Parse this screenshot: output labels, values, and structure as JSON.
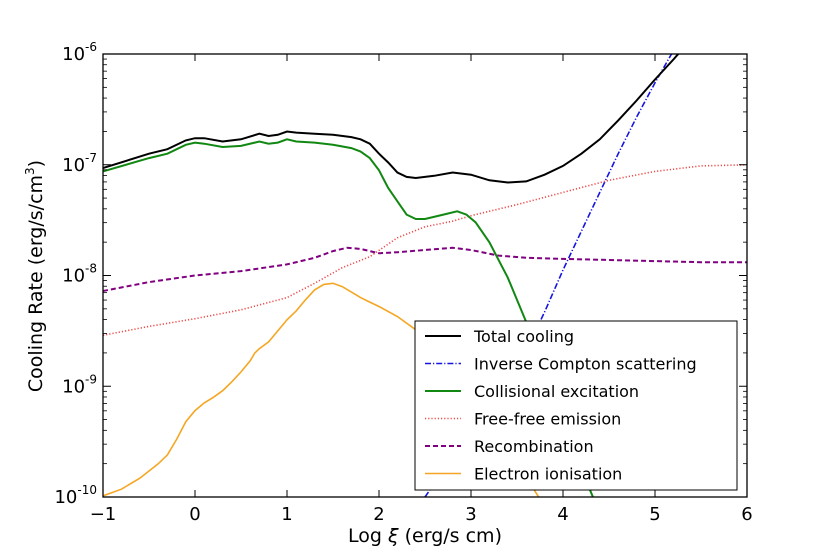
{
  "chart_data": {
    "type": "line",
    "title": "",
    "xlabel": "Log ξ (erg/s cm)",
    "xlabel_parts": {
      "prefix": "Log ",
      "symbol": "ξ",
      "suffix": " (erg/s cm)"
    },
    "ylabel": "Cooling Rate (erg/s/cm³)",
    "ylabel_parts": {
      "prefix": "Cooling Rate (erg/s/cm",
      "sup": "3",
      "suffix": ")"
    },
    "xlim": [
      -1,
      6
    ],
    "ylim_log10": [
      -10,
      -6
    ],
    "yscale": "log",
    "x_ticks": [
      {
        "value": -1,
        "label": "−1"
      },
      {
        "value": 0,
        "label": "0"
      },
      {
        "value": 1,
        "label": "1"
      },
      {
        "value": 2,
        "label": "2"
      },
      {
        "value": 3,
        "label": "3"
      },
      {
        "value": 4,
        "label": "4"
      },
      {
        "value": 5,
        "label": "5"
      },
      {
        "value": 6,
        "label": "6"
      }
    ],
    "y_ticks": [
      {
        "exp": -10,
        "base": "10",
        "sup": "-10"
      },
      {
        "exp": -9,
        "base": "10",
        "sup": "-9"
      },
      {
        "exp": -8,
        "base": "10",
        "sup": "-8"
      },
      {
        "exp": -7,
        "base": "10",
        "sup": "-7"
      },
      {
        "exp": -6,
        "base": "10",
        "sup": "-6"
      }
    ],
    "grid": false,
    "legend_position": "lower-right",
    "series": [
      {
        "name": "Total cooling",
        "key": "total-cooling",
        "color": "#000000",
        "style": "solid",
        "width": 2,
        "x": [
          -1.0,
          -0.5,
          -0.3,
          -0.1,
          0.0,
          0.1,
          0.3,
          0.5,
          0.7,
          0.8,
          0.9,
          1.0,
          1.1,
          1.3,
          1.5,
          1.7,
          1.8,
          1.9,
          2.0,
          2.1,
          2.2,
          2.3,
          2.4,
          2.6,
          2.8,
          3.0,
          3.2,
          3.4,
          3.6,
          3.8,
          4.0,
          4.2,
          4.4,
          4.6,
          4.8,
          5.0,
          5.2,
          5.4
        ],
        "log10_y": [
          -7.03,
          -6.9,
          -6.86,
          -6.78,
          -6.76,
          -6.76,
          -6.79,
          -6.77,
          -6.72,
          -6.74,
          -6.73,
          -6.7,
          -6.71,
          -6.72,
          -6.73,
          -6.75,
          -6.77,
          -6.81,
          -6.9,
          -6.98,
          -7.07,
          -7.11,
          -7.12,
          -7.1,
          -7.07,
          -7.09,
          -7.14,
          -7.16,
          -7.15,
          -7.09,
          -7.01,
          -6.9,
          -6.77,
          -6.6,
          -6.42,
          -6.23,
          -6.05,
          -5.86
        ]
      },
      {
        "name": "Inverse Compton scattering",
        "key": "inverse-compton-scattering",
        "color": "#1515e0",
        "style": "dashdot",
        "width": 1.6,
        "x": [
          2.5,
          3.0,
          3.5,
          3.8,
          4.0,
          4.2,
          4.4,
          4.6,
          4.8,
          5.0,
          5.2,
          5.4
        ],
        "log10_y": [
          -10.0,
          -9.4,
          -8.85,
          -8.33,
          -7.95,
          -7.6,
          -7.25,
          -6.9,
          -6.57,
          -6.26,
          -5.97,
          -5.7
        ]
      },
      {
        "name": "Collisional excitation",
        "key": "collisional-excitation",
        "color": "#118811",
        "style": "solid",
        "width": 2,
        "x": [
          -1.0,
          -0.5,
          -0.3,
          -0.1,
          0.0,
          0.1,
          0.3,
          0.5,
          0.7,
          0.8,
          0.9,
          1.0,
          1.1,
          1.3,
          1.5,
          1.7,
          1.8,
          1.9,
          2.0,
          2.1,
          2.2,
          2.3,
          2.4,
          2.5,
          2.7,
          2.85,
          2.95,
          3.05,
          3.2,
          3.4,
          3.6,
          3.8,
          4.0,
          4.2,
          4.35
        ],
        "log10_y": [
          -7.06,
          -6.94,
          -6.9,
          -6.82,
          -6.8,
          -6.81,
          -6.84,
          -6.83,
          -6.79,
          -6.81,
          -6.8,
          -6.77,
          -6.79,
          -6.8,
          -6.82,
          -6.85,
          -6.88,
          -6.94,
          -7.05,
          -7.21,
          -7.33,
          -7.45,
          -7.49,
          -7.49,
          -7.45,
          -7.42,
          -7.45,
          -7.52,
          -7.7,
          -8.02,
          -8.42,
          -8.85,
          -9.3,
          -9.75,
          -10.05
        ]
      },
      {
        "name": "Free-free emission",
        "key": "free-free-emission",
        "color": "#ee4b4b",
        "style": "dotted",
        "width": 1.6,
        "x": [
          -1.0,
          -0.5,
          0.0,
          0.5,
          1.0,
          1.3,
          1.6,
          1.9,
          2.2,
          2.5,
          2.8,
          3.0,
          3.5,
          4.0,
          4.5,
          5.0,
          5.5,
          6.0
        ],
        "log10_y": [
          -8.54,
          -8.46,
          -8.39,
          -8.31,
          -8.2,
          -8.07,
          -7.93,
          -7.83,
          -7.66,
          -7.56,
          -7.51,
          -7.46,
          -7.36,
          -7.25,
          -7.14,
          -7.06,
          -7.01,
          -7.0
        ]
      },
      {
        "name": "Recombination",
        "key": "recombination",
        "color": "#800080",
        "style": "dashed",
        "width": 2,
        "x": [
          -1.0,
          -0.5,
          0.0,
          0.5,
          1.0,
          1.3,
          1.5,
          1.65,
          1.8,
          2.0,
          2.2,
          2.5,
          2.8,
          3.0,
          3.3,
          3.6,
          4.0,
          4.5,
          5.0,
          5.5,
          6.0
        ],
        "log10_y": [
          -8.14,
          -8.06,
          -8.0,
          -7.96,
          -7.9,
          -7.84,
          -7.78,
          -7.75,
          -7.76,
          -7.8,
          -7.79,
          -7.77,
          -7.75,
          -7.77,
          -7.82,
          -7.84,
          -7.85,
          -7.86,
          -7.87,
          -7.88,
          -7.88
        ]
      },
      {
        "name": "Electron ionisation",
        "key": "electron-ionisation",
        "color": "#f5a623",
        "style": "solid",
        "width": 1.6,
        "x": [
          -1.0,
          -0.8,
          -0.6,
          -0.4,
          -0.3,
          -0.2,
          -0.1,
          0.0,
          0.1,
          0.2,
          0.3,
          0.4,
          0.5,
          0.6,
          0.65,
          0.7,
          0.8,
          0.9,
          1.0,
          1.1,
          1.2,
          1.3,
          1.4,
          1.5,
          1.6,
          1.7,
          1.8,
          1.9,
          2.0,
          2.2,
          2.4,
          2.6,
          2.8,
          3.0,
          3.2,
          3.4,
          3.6,
          3.75
        ],
        "log10_y": [
          -9.99,
          -9.93,
          -9.83,
          -9.7,
          -9.62,
          -9.48,
          -9.32,
          -9.22,
          -9.15,
          -9.1,
          -9.04,
          -8.96,
          -8.87,
          -8.77,
          -8.7,
          -8.66,
          -8.6,
          -8.5,
          -8.4,
          -8.32,
          -8.22,
          -8.13,
          -8.08,
          -8.07,
          -8.1,
          -8.15,
          -8.2,
          -8.24,
          -8.28,
          -8.37,
          -8.49,
          -8.64,
          -8.82,
          -9.05,
          -9.3,
          -9.55,
          -9.82,
          -10.02
        ]
      }
    ]
  }
}
